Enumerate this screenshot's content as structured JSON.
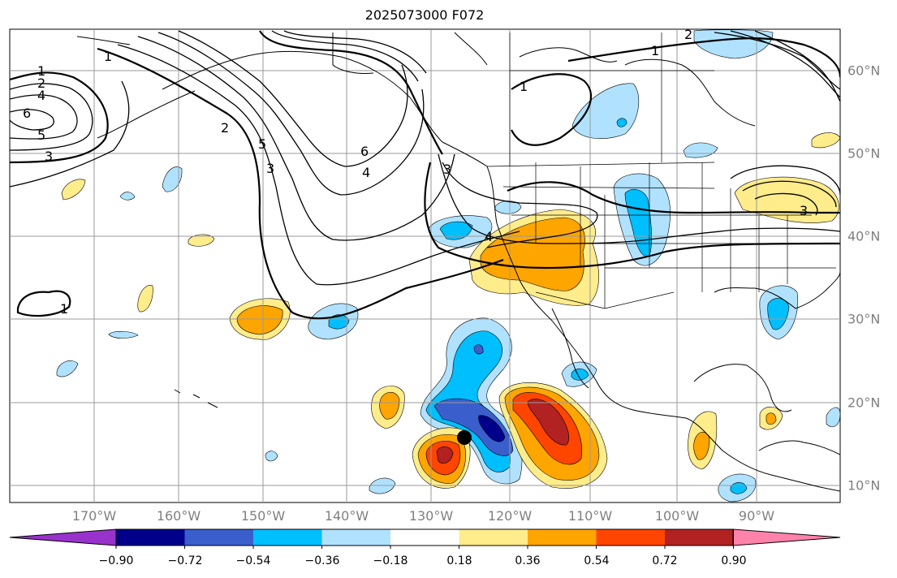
{
  "title": "2025073000 F072",
  "lon_labels": [
    "170°W",
    "160°W",
    "150°W",
    "140°W",
    "130°W",
    "120°W",
    "110°W",
    "100°W",
    "90°W"
  ],
  "lat_labels": [
    "60°N",
    "50°N",
    "40°N",
    "30°N",
    "20°N",
    "10°N"
  ],
  "colorbar": {
    "tick_labels": [
      "−0.90",
      "−0.72",
      "−0.54",
      "−0.36",
      "−0.18",
      "0.18",
      "0.36",
      "0.54",
      "0.72",
      "0.90"
    ],
    "colors": [
      "#9932cc",
      "#00008b",
      "#3a5fcd",
      "#00bfff",
      "#b0e2ff",
      "#ffffff",
      "#ffec8b",
      "#ffa500",
      "#ff4500",
      "#b22222",
      "#ff82ab"
    ]
  },
  "contour_labels": [
    "1",
    "2",
    "4",
    "6",
    "5",
    "3",
    "1",
    "2",
    "5",
    "3",
    "6",
    "4",
    "3",
    "4",
    "1",
    "1",
    "2",
    "3",
    "1"
  ],
  "map_extent": {
    "lon_west": -180,
    "lon_east": -81,
    "lat_south": 8,
    "lat_north": 65
  },
  "marker": {
    "name": "storm-center",
    "lon": -126,
    "lat": 16,
    "color": "#000000"
  }
}
